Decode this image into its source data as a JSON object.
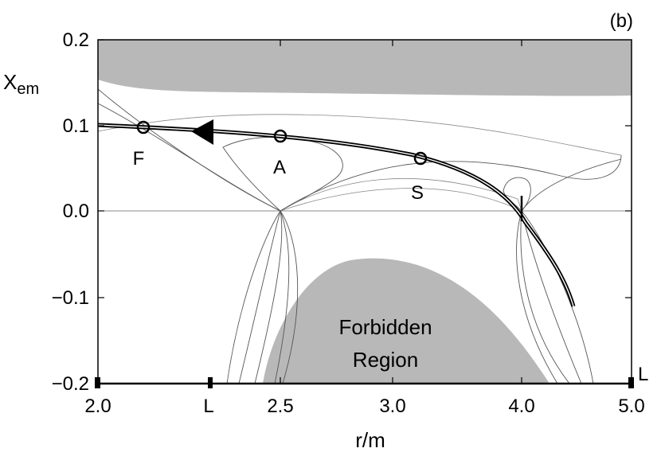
{
  "panel_label": "(b)",
  "colors": {
    "shade": "#b8b8b8",
    "trajectory": "#000000",
    "contour": "#555555"
  },
  "chart_data": {
    "type": "line",
    "title": "",
    "xlabel": "r/m",
    "ylabel": "X",
    "ylabel_subscript": "em",
    "ylim": [
      -0.2,
      0.2
    ],
    "yticks": [
      {
        "value": 0.2,
        "label": "0.2"
      },
      {
        "value": 0.1,
        "label": "0.1"
      },
      {
        "value": 0.0,
        "label": "0.0"
      },
      {
        "value": -0.1,
        "label": "−0.1"
      },
      {
        "value": -0.2,
        "label": "−0.2"
      }
    ],
    "xticks": [
      {
        "label": "2.0"
      },
      {
        "label": "L"
      },
      {
        "label": "2.5"
      },
      {
        "label": "3.0"
      },
      {
        "label": "4.0"
      },
      {
        "label": "5.0"
      }
    ],
    "x_axis_end_marker": "L",
    "grid": false,
    "points": [
      {
        "label": "F",
        "x": 2.2,
        "y": 0.098
      },
      {
        "label": "A",
        "x": 2.58,
        "y": 0.087
      },
      {
        "label": "S",
        "x": 3.2,
        "y": 0.06
      }
    ],
    "trajectory_direction": "leftward",
    "regions": [
      {
        "label_line1": "Forbidden",
        "label_line2": "Region"
      }
    ]
  }
}
